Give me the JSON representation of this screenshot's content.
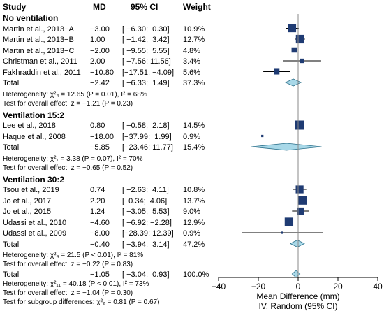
{
  "chart_data": {
    "type": "forest",
    "xlabel": "Mean Difference (mm)",
    "xlabel2": "IV, Random (95% CI)",
    "xlim": [
      -40,
      40
    ],
    "xticks": [
      -40,
      -20,
      0,
      20,
      40
    ],
    "header": {
      "study": "Study",
      "md": "MD",
      "ci": "95% CI",
      "weight": "Weight"
    },
    "groups": [
      {
        "name": "No ventilation",
        "studies": [
          {
            "label": "Martin et al., 2013−A",
            "md": -3.0,
            "lo": -6.3,
            "hi": 0.3,
            "weight": 10.9,
            "md_text": "−3.00",
            "ci_text": "[ −6.30;  0.30]",
            "w_text": "10.9%"
          },
          {
            "label": "Martin et al., 2013−B",
            "md": 1.0,
            "lo": -1.42,
            "hi": 3.42,
            "weight": 12.7,
            "md_text": "1.00",
            "ci_text": "[ −1.42;  3.42]",
            "w_text": "12.7%"
          },
          {
            "label": "Martin et al., 2013−C",
            "md": -2.0,
            "lo": -9.55,
            "hi": 5.55,
            "weight": 4.8,
            "md_text": "−2.00",
            "ci_text": "[ −9.55;  5.55]",
            "w_text": "4.8%"
          },
          {
            "label": "Christman et al., 2011",
            "md": 2.0,
            "lo": -7.56,
            "hi": 11.56,
            "weight": 3.4,
            "md_text": "2.00",
            "ci_text": "[ −7.56; 11.56]",
            "w_text": "3.4%"
          },
          {
            "label": "Fakhraddin et al., 2011",
            "md": -10.8,
            "lo": -17.51,
            "hi": -4.09,
            "weight": 5.6,
            "md_text": "−10.80",
            "ci_text": "[−17.51; −4.09]",
            "w_text": "5.6%"
          }
        ],
        "total": {
          "label": "Total",
          "md": -2.42,
          "lo": -6.33,
          "hi": 1.49,
          "md_text": "−2.42",
          "ci_text": "[ −6.33;  1.49]",
          "w_text": "37.3%"
        },
        "heterogeneity": "Heterogeneity: χ²₄ = 12.65 (P = 0.01), I² = 68%",
        "overall": "Test for overall effect: z = −1.21 (P = 0.23)"
      },
      {
        "name": "Ventilation 15:2",
        "studies": [
          {
            "label": "Lee et al., 2018",
            "md": 0.8,
            "lo": -0.58,
            "hi": 2.18,
            "weight": 14.5,
            "md_text": "0.80",
            "ci_text": "[ −0.58;  2.18]",
            "w_text": "14.5%"
          },
          {
            "label": "Haque et al., 2008",
            "md": -18.0,
            "lo": -37.99,
            "hi": 1.99,
            "weight": 0.9,
            "md_text": "−18.00",
            "ci_text": "[−37.99;  1.99]",
            "w_text": "0.9%"
          }
        ],
        "total": {
          "label": "Total",
          "md": -5.85,
          "lo": -23.46,
          "hi": 11.77,
          "md_text": "−5.85",
          "ci_text": "[−23.46; 11.77]",
          "w_text": "15.4%"
        },
        "heterogeneity": "Heterogeneity: χ²₁ = 3.38 (P = 0.07), I² = 70%",
        "overall": "Test for overall effect: z = −0.65 (P = 0.52)"
      },
      {
        "name": "Ventilation 30:2",
        "studies": [
          {
            "label": "Tsou et al., 2019",
            "md": 0.74,
            "lo": -2.63,
            "hi": 4.11,
            "weight": 10.8,
            "md_text": "0.74",
            "ci_text": "[ −2.63;  4.11]",
            "w_text": "10.8%"
          },
          {
            "label": "Jo et al., 2017",
            "md": 2.2,
            "lo": 0.34,
            "hi": 4.06,
            "weight": 13.7,
            "md_text": "2.20",
            "ci_text": "[  0.34;  4.06]",
            "w_text": "13.7%"
          },
          {
            "label": "Jo et al., 2015",
            "md": 1.24,
            "lo": -3.05,
            "hi": 5.53,
            "weight": 9.0,
            "md_text": "1.24",
            "ci_text": "[ −3.05;  5.53]",
            "w_text": "9.0%"
          },
          {
            "label": "Udassi et al., 2010",
            "md": -4.6,
            "lo": -6.92,
            "hi": -2.28,
            "weight": 12.9,
            "md_text": "−4.60",
            "ci_text": "[ −6.92; −2.28]",
            "w_text": "12.9%"
          },
          {
            "label": "Udassi et al., 2009",
            "md": -8.0,
            "lo": -28.39,
            "hi": 12.39,
            "weight": 0.9,
            "md_text": "−8.00",
            "ci_text": "[−28.39; 12.39]",
            "w_text": "0.9%"
          }
        ],
        "total": {
          "label": "Total",
          "md": -0.4,
          "lo": -3.94,
          "hi": 3.14,
          "md_text": "−0.40",
          "ci_text": "[ −3.94;  3.14]",
          "w_text": "47.2%"
        },
        "heterogeneity": "Heterogeneity: χ²₄ = 21.5 (P < 0.01), I² = 81%",
        "overall": "Test for overall effect: z = −0.22 (P = 0.83)"
      }
    ],
    "overall_total": {
      "label": "Total",
      "md": -1.05,
      "lo": -3.04,
      "hi": 0.93,
      "md_text": "−1.05",
      "ci_text": "[ −3.04;  0.93]",
      "w_text": "100.0%"
    },
    "overall_heterogeneity": "Heterogeneity: χ²₁₁ = 40.18 (P < 0.01), I² = 73%",
    "overall_effect": "Test for overall effect: z = −1.04 (P = 0.30)",
    "subgroup_test": "Test for subgroup differences: χ²₂ = 0.81 (P = 0.67)",
    "colors": {
      "square": "#1f3b73",
      "diamond": "#a8d8e8",
      "diamond_stroke": "#2a6f8a",
      "line": "#000000"
    }
  }
}
